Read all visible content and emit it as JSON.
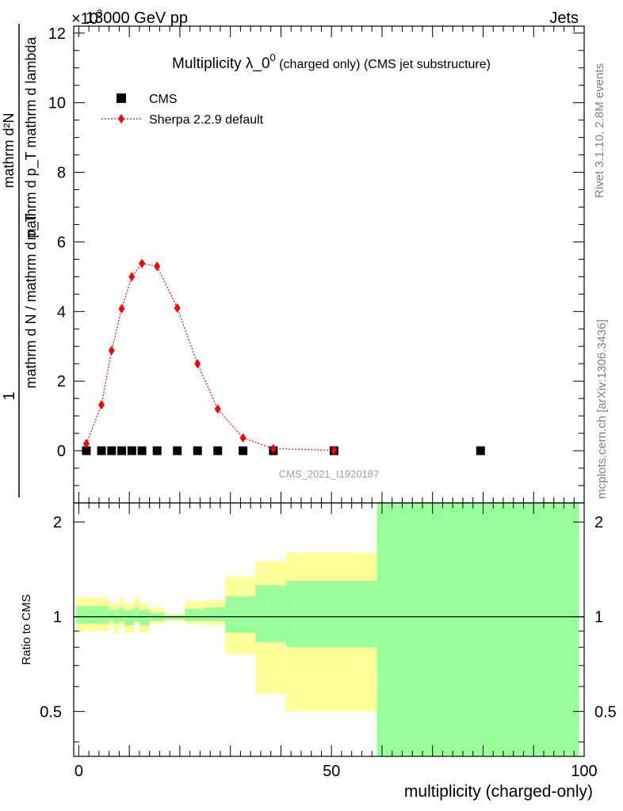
{
  "header": {
    "energy": "13000 GeV pp",
    "process": "Jets",
    "exponent": "×10^{3}"
  },
  "side_texts": {
    "rivet": "Rivet 3.1.10,  2.8M events",
    "mcplots": "mcplots.cern.ch [arXiv:1306.3436]"
  },
  "ylabel_main": {
    "numerator": "mathrm d²N",
    "denominator": "mathrm d p_T mathrm d lambda",
    "prefix_num": "1",
    "prefix_den": "mathrm d N / mathrm d p_T"
  },
  "chart_data": [
    {
      "type": "scatter",
      "title": "Multiplicity λ_0^0 (charged only) (CMS jet substructure)",
      "watermark": "CMS_2021_I1920187",
      "xlim": [
        -1,
        100
      ],
      "ylim": [
        -1.5,
        12.2
      ],
      "yticks": [
        0,
        2,
        4,
        6,
        8,
        10,
        12
      ],
      "y_scale_note": "×10^3",
      "legend_position": "top-left",
      "series": [
        {
          "name": "CMS",
          "marker": "square",
          "color": "#000000",
          "x": [
            1.5,
            4.5,
            6.5,
            8.5,
            10.5,
            12.5,
            15.5,
            19.5,
            23.5,
            27.5,
            32.5,
            38.5,
            50.5,
            79.5
          ],
          "y": [
            0,
            0,
            0,
            0,
            0,
            0,
            0,
            0,
            0,
            0,
            0,
            0,
            0,
            0
          ]
        },
        {
          "name": "Sherpa 2.2.9 default",
          "marker": "diamond",
          "line": "dotted",
          "color": "#ff0000",
          "x": [
            1.5,
            4.5,
            6.5,
            8.5,
            10.5,
            12.5,
            15.5,
            19.5,
            23.5,
            27.5,
            32.5,
            38.5,
            50.5
          ],
          "y": [
            0.2,
            1.32,
            2.88,
            4.08,
            5.0,
            5.38,
            5.3,
            4.1,
            2.5,
            1.2,
            0.37,
            0.06,
            0.01
          ]
        }
      ]
    },
    {
      "type": "area",
      "ylabel": "Ratio to CMS",
      "xlabel": "multiplicity (charged-only)",
      "xlim": [
        -1,
        100
      ],
      "ylim": [
        0.36,
        2.3
      ],
      "xticks": [
        0,
        50,
        100
      ],
      "yticks": [
        0.5,
        1,
        2
      ],
      "reference_line": 1,
      "bands": [
        {
          "x0": -0.5,
          "x1": 6,
          "lo_yellow": 0.9,
          "hi_yellow": 1.15,
          "lo_green": 0.95,
          "hi_green": 1.08
        },
        {
          "x0": 6,
          "x1": 7,
          "lo_yellow": 0.93,
          "hi_yellow": 1.1,
          "lo_green": 0.97,
          "hi_green": 1.05
        },
        {
          "x0": 7,
          "x1": 8,
          "lo_yellow": 0.89,
          "hi_yellow": 1.1,
          "lo_green": 0.95,
          "hi_green": 1.05
        },
        {
          "x0": 8,
          "x1": 9,
          "lo_yellow": 0.93,
          "hi_yellow": 1.15,
          "lo_green": 0.97,
          "hi_green": 1.07
        },
        {
          "x0": 9,
          "x1": 11,
          "lo_yellow": 0.89,
          "hi_yellow": 1.1,
          "lo_green": 0.94,
          "hi_green": 1.05
        },
        {
          "x0": 11,
          "x1": 12,
          "lo_yellow": 0.95,
          "hi_yellow": 1.15,
          "lo_green": 0.97,
          "hi_green": 1.07
        },
        {
          "x0": 12,
          "x1": 14,
          "lo_yellow": 0.89,
          "hi_yellow": 1.1,
          "lo_green": 0.94,
          "hi_green": 1.05
        },
        {
          "x0": 14,
          "x1": 17,
          "lo_yellow": 0.95,
          "hi_yellow": 1.07,
          "lo_green": 0.97,
          "hi_green": 1.03
        },
        {
          "x0": 17,
          "x1": 21,
          "lo_yellow": 0.97,
          "hi_yellow": 1.02,
          "lo_green": 0.98,
          "hi_green": 1.01
        },
        {
          "x0": 21,
          "x1": 25,
          "lo_yellow": 0.95,
          "hi_yellow": 1.12,
          "lo_green": 0.97,
          "hi_green": 1.06
        },
        {
          "x0": 25,
          "x1": 29,
          "lo_yellow": 0.94,
          "hi_yellow": 1.13,
          "lo_green": 0.97,
          "hi_green": 1.07
        },
        {
          "x0": 29,
          "x1": 35,
          "lo_yellow": 0.76,
          "hi_yellow": 1.34,
          "lo_green": 0.89,
          "hi_green": 1.16
        },
        {
          "x0": 35,
          "x1": 41,
          "lo_yellow": 0.57,
          "hi_yellow": 1.5,
          "lo_green": 0.83,
          "hi_green": 1.26
        },
        {
          "x0": 41,
          "x1": 59,
          "lo_yellow": 0.5,
          "hi_yellow": 1.6,
          "lo_green": 0.8,
          "hi_green": 1.3
        },
        {
          "x0": 59,
          "x1": 99,
          "lo_yellow": 0.3,
          "hi_yellow": 2.5,
          "lo_green": 0.3,
          "hi_green": 2.5
        }
      ],
      "colors": {
        "yellow": "#ffff99",
        "green": "#99ff99"
      }
    }
  ]
}
